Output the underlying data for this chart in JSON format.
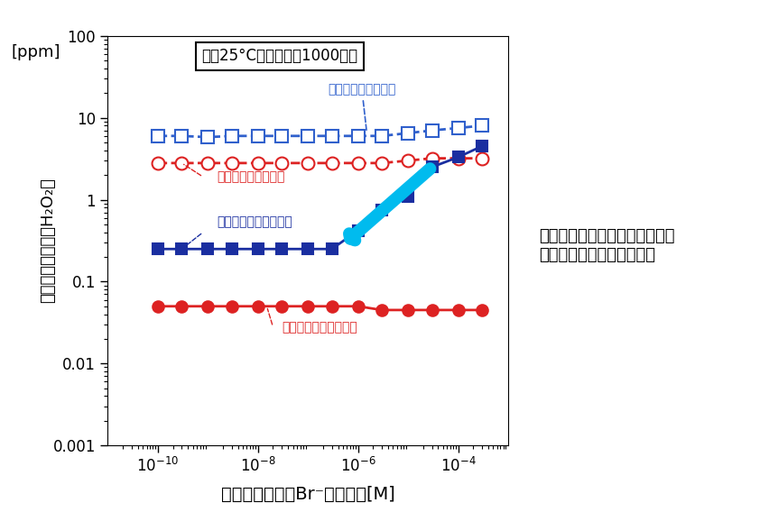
{
  "title_box": "温度25°C、照射時間1000時間",
  "xlabel": "臭化物イオン（Br⁻）濃度　[M]",
  "ylabel": "過酸化水素濃度（H₂O₂）\n[ppm]",
  "ylabel_top": "[ppm]",
  "ylabel_main": "過酸化水素濃度（H₂O₂）",
  "xlim": [
    1e-11,
    0.001
  ],
  "ylim": [
    0.001,
    100
  ],
  "x_values": [
    1e-10,
    3e-10,
    1e-09,
    3e-09,
    1e-08,
    3e-08,
    1e-07,
    3e-07,
    1e-06,
    3e-06,
    1e-05,
    3e-05,
    0.0001,
    0.0003
  ],
  "series_hi_atm": {
    "label": "高線量率、大気飽和",
    "color": "#3060CC",
    "linestyle": "dashed",
    "marker": "s",
    "markerfacecolor": "white",
    "markersize": 10,
    "linewidth": 2.0,
    "y_values": [
      6.0,
      6.0,
      5.8,
      6.0,
      6.0,
      6.0,
      6.0,
      6.0,
      6.0,
      6.0,
      6.5,
      7.0,
      7.5,
      8.0
    ]
  },
  "series_lo_atm": {
    "label": "低線量率、大気飽和",
    "color": "#DD2222",
    "linestyle": "dashed",
    "marker": "o",
    "markerfacecolor": "white",
    "markersize": 10,
    "linewidth": 2.0,
    "y_values": [
      2.8,
      2.8,
      2.8,
      2.8,
      2.8,
      2.8,
      2.8,
      2.8,
      2.8,
      2.8,
      3.0,
      3.2,
      3.2,
      3.2
    ]
  },
  "series_hi_n2": {
    "label": "高線量率、窒素パージ",
    "color": "#1A2EA0",
    "linestyle": "solid",
    "marker": "s",
    "markerfacecolor": "#1A2EA0",
    "markersize": 9,
    "linewidth": 2.0,
    "y_values": [
      0.25,
      0.25,
      0.25,
      0.25,
      0.25,
      0.25,
      0.25,
      0.25,
      0.42,
      0.75,
      1.1,
      2.5,
      3.3,
      4.5
    ]
  },
  "series_lo_n2": {
    "label": "低線量率、窒素パージ",
    "color": "#DD2222",
    "linestyle": "solid",
    "marker": "o",
    "markerfacecolor": "#DD2222",
    "markersize": 9,
    "linewidth": 2.0,
    "y_values": [
      0.05,
      0.05,
      0.05,
      0.05,
      0.05,
      0.05,
      0.05,
      0.05,
      0.05,
      0.045,
      0.045,
      0.045,
      0.045,
      0.045
    ]
  },
  "annotation_text": "臭化物イオン濃度の低下に伴い\n過酸化水素の濃度も下がる",
  "background_color": "#ffffff"
}
